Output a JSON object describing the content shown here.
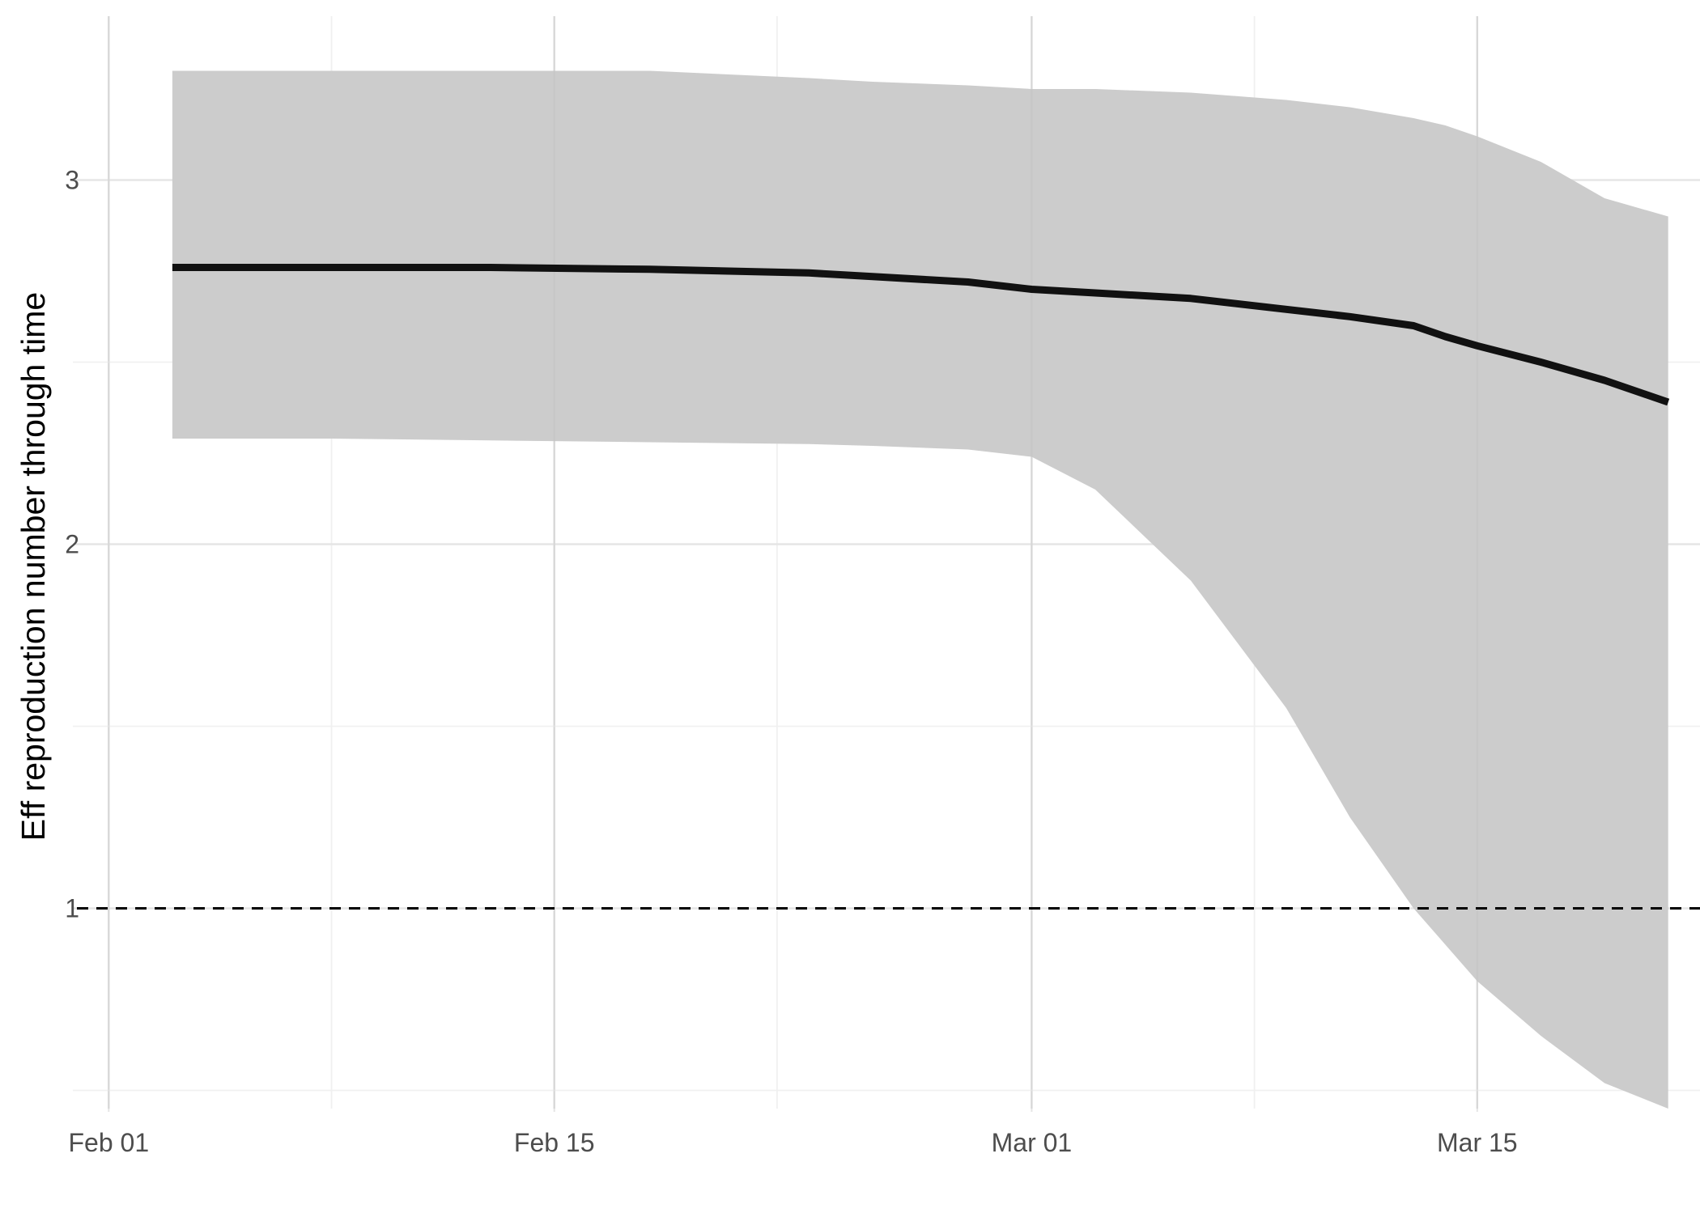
{
  "chart_data": {
    "type": "line",
    "title": "",
    "xlabel": "",
    "ylabel": "Eff reproduction number through time",
    "x_ticks": [
      "Feb 01",
      "Feb 15",
      "Mar 01",
      "Mar 15"
    ],
    "x_tick_dates": [
      "2020-02-01",
      "2020-02-15",
      "2020-03-01",
      "2020-03-15"
    ],
    "y_ticks": [
      "1",
      "2",
      "3"
    ],
    "xlim": [
      "2020-01-31",
      "2020-03-22"
    ],
    "ylim": [
      0.45,
      3.45
    ],
    "grid": true,
    "legend": "none",
    "reference_line": {
      "y": 1,
      "style": "dashed",
      "color": "#000000"
    },
    "band_color": "#cccccc",
    "line_color": "#111111",
    "series": [
      {
        "x": [
          "2020-02-03",
          "2020-02-08",
          "2020-02-13",
          "2020-02-18",
          "2020-02-23",
          "2020-02-25",
          "2020-02-28",
          "2020-03-01",
          "2020-03-03",
          "2020-03-06",
          "2020-03-09",
          "2020-03-11",
          "2020-03-13",
          "2020-03-14",
          "2020-03-15",
          "2020-03-17",
          "2020-03-19",
          "2020-03-21"
        ],
        "y": [
          2.76,
          2.76,
          2.76,
          2.755,
          2.745,
          2.735,
          2.72,
          2.7,
          2.69,
          2.675,
          2.645,
          2.625,
          2.6,
          2.57,
          2.545,
          2.5,
          2.45,
          2.39
        ],
        "lower": [
          2.29,
          2.29,
          2.285,
          2.28,
          2.275,
          2.27,
          2.26,
          2.24,
          2.15,
          1.9,
          1.55,
          1.25,
          1.0,
          0.9,
          0.8,
          0.65,
          0.52,
          0.45
        ],
        "upper": [
          3.3,
          3.3,
          3.3,
          3.3,
          3.28,
          3.27,
          3.26,
          3.25,
          3.25,
          3.24,
          3.22,
          3.2,
          3.17,
          3.15,
          3.12,
          3.05,
          2.95,
          2.9
        ]
      }
    ]
  }
}
